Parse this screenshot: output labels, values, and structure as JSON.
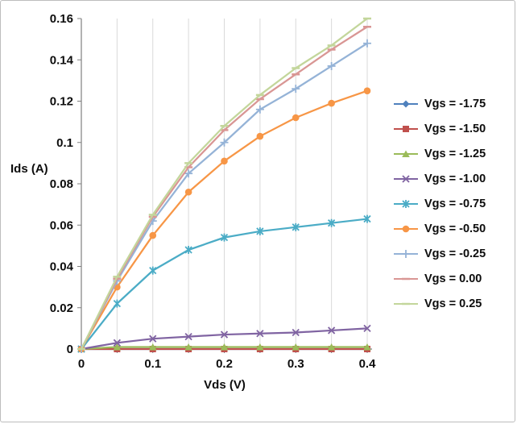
{
  "chart_data": {
    "type": "line",
    "title": "",
    "xlabel": "Vds (V)",
    "ylabel": "Ids (A)",
    "xlim": [
      0,
      0.4
    ],
    "ylim": [
      0,
      0.16
    ],
    "x": [
      0,
      0.05,
      0.1,
      0.15,
      0.2,
      0.25,
      0.3,
      0.35,
      0.4
    ],
    "x_ticks": [
      0,
      0.1,
      0.2,
      0.3,
      0.4
    ],
    "x_tick_labels": [
      "0",
      "0.1",
      "0.2",
      "0.3",
      "0.4"
    ],
    "y_ticks": [
      0,
      0.02,
      0.04,
      0.06,
      0.08,
      0.1,
      0.12,
      0.14,
      0.16
    ],
    "y_tick_labels": [
      "0",
      "0.02",
      "0.04",
      "0.06",
      "0.08",
      "0.1",
      "0.12",
      "0.14",
      "0.16"
    ],
    "grid": "vertical",
    "grid_color": "#d9d9d9",
    "axis_color": "#808080",
    "legend_position": "right",
    "series": [
      {
        "name": "Vgs = -1.75",
        "color": "#4F81BD",
        "marker": "diamond",
        "values": [
          0,
          0,
          0,
          0,
          0,
          0,
          0,
          0,
          0
        ]
      },
      {
        "name": "Vgs = -1.50",
        "color": "#C0504D",
        "marker": "square",
        "values": [
          0,
          0,
          0,
          0,
          0,
          0,
          0,
          0,
          0
        ]
      },
      {
        "name": "Vgs = -1.25",
        "color": "#9BBB59",
        "marker": "triangle",
        "values": [
          0,
          0.001,
          0.001,
          0.001,
          0.001,
          0.001,
          0.001,
          0.001,
          0.001
        ]
      },
      {
        "name": "Vgs = -1.00",
        "color": "#8064A2",
        "marker": "x",
        "values": [
          0,
          0.003,
          0.005,
          0.006,
          0.007,
          0.0075,
          0.008,
          0.009,
          0.01
        ]
      },
      {
        "name": "Vgs = -0.75",
        "color": "#4BACC6",
        "marker": "asterisk",
        "values": [
          0,
          0.022,
          0.038,
          0.048,
          0.054,
          0.057,
          0.059,
          0.061,
          0.063
        ]
      },
      {
        "name": "Vgs = -0.50",
        "color": "#F79646",
        "marker": "circle",
        "values": [
          0,
          0.03,
          0.055,
          0.076,
          0.091,
          0.103,
          0.112,
          0.119,
          0.125
        ]
      },
      {
        "name": "Vgs = -0.25",
        "color": "#95B3D7",
        "marker": "plus",
        "values": [
          0,
          0.033,
          0.062,
          0.085,
          0.1,
          0.116,
          0.126,
          0.137,
          0.148
        ]
      },
      {
        "name": "Vgs = 0.00",
        "color": "#D99694",
        "marker": "dash",
        "values": [
          0,
          0.034,
          0.064,
          0.088,
          0.106,
          0.121,
          0.133,
          0.145,
          0.156
        ]
      },
      {
        "name": "Vgs = 0.25",
        "color": "#C3D69B",
        "marker": "dash",
        "values": [
          0,
          0.035,
          0.065,
          0.09,
          0.108,
          0.123,
          0.136,
          0.147,
          0.16
        ]
      }
    ]
  }
}
